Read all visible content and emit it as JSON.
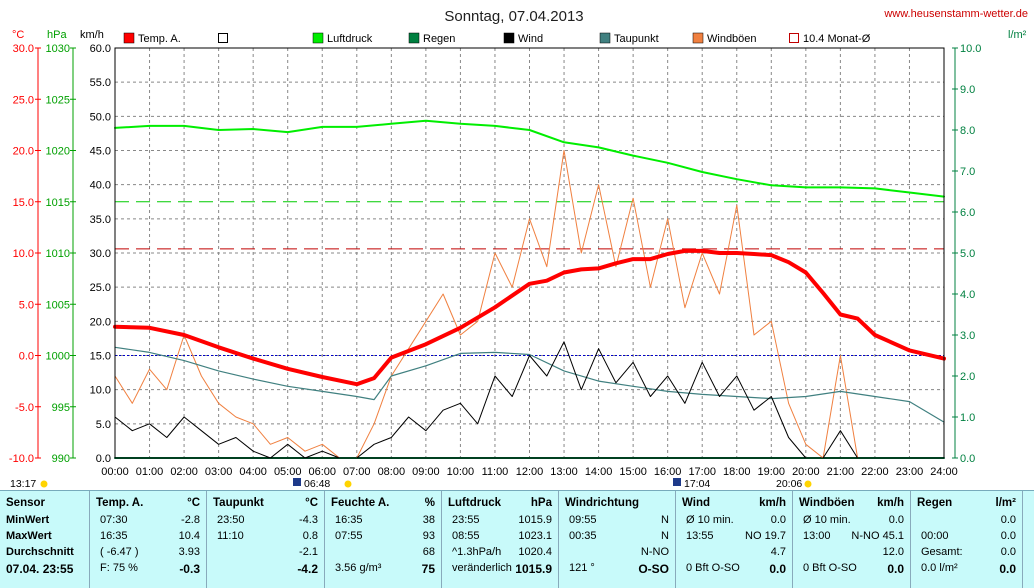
{
  "header": {
    "title": "Sonntag, 07.04.2013",
    "site": "www.heusenstamm-wetter.de",
    "units": {
      "temp": "°C",
      "press": "hPa",
      "wind": "km/h",
      "rain": "l/m²"
    }
  },
  "legend": [
    {
      "label": "Temp. A.",
      "color": "#ff0000",
      "style": "box-filled"
    },
    {
      "label": "",
      "color": "#000000",
      "style": "box-empty"
    },
    {
      "label": "Luftdruck",
      "color": "#00ee00",
      "style": "box-filled"
    },
    {
      "label": "Regen",
      "color": "#008040",
      "style": "box-filled"
    },
    {
      "label": "Wind",
      "color": "#000000",
      "style": "box-filled"
    },
    {
      "label": "Taupunkt",
      "color": "#408080",
      "style": "box-filled"
    },
    {
      "label": "Windböen",
      "color": "#f08040",
      "style": "box-filled"
    },
    {
      "label": "10.4 Monat-Ø",
      "color": "#c00000",
      "style": "box-empty"
    }
  ],
  "chart_data": {
    "type": "line",
    "x_ticks": [
      "00:00",
      "01:00",
      "02:00",
      "03:00",
      "04:00",
      "05:00",
      "06:00",
      "07:00",
      "08:00",
      "09:00",
      "10:00",
      "11:00",
      "12:00",
      "13:00",
      "14:00",
      "15:00",
      "16:00",
      "17:00",
      "18:00",
      "19:00",
      "20:00",
      "21:00",
      "22:00",
      "23:00",
      "24:00"
    ],
    "axes": {
      "temp_c": {
        "ticks": [
          "30.0",
          "25.0",
          "20.0",
          "15.0",
          "10.0",
          "5.0",
          "0.0",
          "-5.0",
          "-10.0"
        ],
        "range": [
          -10,
          30
        ]
      },
      "pressure_hpa": {
        "ticks": [
          "1030",
          "1025",
          "1020",
          "1015",
          "1010",
          "1005",
          "1000",
          "995",
          "990"
        ],
        "range": [
          990,
          1030
        ]
      },
      "wind_kmh": {
        "ticks": [
          "60.0",
          "55.0",
          "50.0",
          "45.0",
          "40.0",
          "35.0",
          "30.0",
          "25.0",
          "20.0",
          "15.0",
          "10.0",
          "5.0",
          "0.0"
        ],
        "range": [
          0,
          60
        ]
      },
      "rain_lm2": {
        "ticks": [
          "10.0",
          "9.0",
          "8.0",
          "7.0",
          "6.0",
          "5.0",
          "4.0",
          "3.0",
          "2.0",
          "1.0",
          "0.0"
        ],
        "range": [
          0,
          10
        ]
      }
    },
    "reference_lines": {
      "month_avg_temp": 10.4,
      "pressure_ref": 1015,
      "zero_temp": 0
    },
    "series": [
      {
        "name": "Temp. A.",
        "axis": "temp_c",
        "color": "#ff0000",
        "x": [
          0,
          1,
          2,
          3,
          4,
          5,
          6,
          7,
          7.5,
          8,
          9,
          10,
          11,
          12,
          12.5,
          13,
          13.5,
          14,
          14.5,
          15,
          15.5,
          16,
          16.5,
          17,
          17.5,
          18,
          18.5,
          19,
          19.5,
          20,
          20.5,
          21,
          21.5,
          22,
          23,
          24
        ],
        "y": [
          2.8,
          2.7,
          2.0,
          0.8,
          -0.3,
          -1.3,
          -2.1,
          -2.8,
          -2.2,
          -0.2,
          1.1,
          2.7,
          4.7,
          7.0,
          7.3,
          8.1,
          8.4,
          8.5,
          9.0,
          9.4,
          9.4,
          9.9,
          10.2,
          10.2,
          10.0,
          10.0,
          9.9,
          9.8,
          9.1,
          8.1,
          6.1,
          4.0,
          3.6,
          2.0,
          0.5,
          -0.3
        ]
      },
      {
        "name": "Taupunkt",
        "axis": "temp_c",
        "color": "#408080",
        "x": [
          0,
          1,
          2,
          3,
          4,
          5,
          6,
          7,
          7.5,
          8,
          9,
          10,
          11,
          12,
          13,
          14,
          15,
          16,
          17,
          18,
          19,
          20,
          21,
          22,
          23,
          24
        ],
        "y": [
          0.8,
          0.3,
          -0.5,
          -1.5,
          -2.3,
          -3.0,
          -3.5,
          -4.0,
          -4.3,
          -2.0,
          -1.0,
          0.2,
          0.3,
          0.1,
          -1.5,
          -2.5,
          -3.0,
          -3.5,
          -3.8,
          -4.0,
          -4.2,
          -4.0,
          -3.5,
          -4.0,
          -4.5,
          -6.5
        ]
      },
      {
        "name": "Luftdruck",
        "axis": "pressure_hpa",
        "color": "#00ee00",
        "x": [
          0,
          1,
          2,
          3,
          4,
          5,
          6,
          7,
          8,
          9,
          10,
          11,
          12,
          13,
          14,
          15,
          16,
          17,
          18,
          19,
          20,
          21,
          22,
          23,
          24
        ],
        "y": [
          1022.2,
          1022.4,
          1022.4,
          1022.0,
          1022.1,
          1021.8,
          1022.3,
          1022.3,
          1022.6,
          1022.9,
          1022.6,
          1022.4,
          1022.0,
          1020.8,
          1020.3,
          1019.5,
          1018.8,
          1017.9,
          1017.2,
          1016.6,
          1016.4,
          1016.4,
          1016.3,
          1015.9,
          1015.5
        ]
      },
      {
        "name": "Wind",
        "axis": "wind_kmh",
        "color": "#000000",
        "x": [
          0,
          0.5,
          1,
          1.5,
          2,
          2.5,
          3,
          3.5,
          4,
          4.5,
          5,
          5.5,
          6,
          6.5,
          7,
          7.5,
          8,
          8.5,
          9,
          9.5,
          10,
          10.5,
          11,
          11.5,
          12,
          12.5,
          13,
          13.5,
          14,
          14.5,
          15,
          15.5,
          16,
          16.5,
          17,
          17.5,
          18,
          18.5,
          19,
          19.5,
          20,
          20.5,
          21,
          21.5,
          22
        ],
        "y": [
          6,
          4,
          5,
          3,
          6,
          4,
          2,
          3,
          1,
          0,
          2,
          0,
          1,
          0,
          0,
          2,
          3,
          6,
          4,
          7,
          8,
          5,
          12,
          9,
          15,
          12,
          17,
          10,
          16,
          11,
          14,
          9,
          12,
          8,
          14,
          9,
          12,
          7,
          9,
          3,
          0,
          0,
          4,
          0,
          0
        ]
      },
      {
        "name": "Windböen",
        "axis": "wind_kmh",
        "color": "#f08040",
        "x": [
          0,
          0.5,
          1,
          1.5,
          2,
          2.5,
          3,
          3.5,
          4,
          4.5,
          5,
          5.5,
          6,
          6.5,
          7,
          7.5,
          8,
          8.5,
          9,
          9.5,
          10,
          10.5,
          11,
          11.5,
          12,
          12.5,
          13,
          13.5,
          14,
          14.5,
          15,
          15.5,
          16,
          16.5,
          17,
          17.5,
          18,
          18.5,
          19,
          19.5,
          20,
          20.5,
          21,
          21.5,
          22
        ],
        "y": [
          12,
          8,
          13,
          10,
          18,
          12,
          8,
          6,
          5,
          2,
          3,
          1,
          2,
          0,
          0,
          5,
          12,
          16,
          20,
          24,
          18,
          20,
          30,
          25,
          35,
          28,
          45,
          30,
          40,
          28,
          38,
          25,
          35,
          22,
          30,
          24,
          37,
          18,
          20,
          8,
          2,
          0,
          15,
          0,
          0
        ]
      },
      {
        "name": "Regen",
        "axis": "rain_lm2",
        "color": "#008040",
        "x": [
          0,
          24
        ],
        "y": [
          0,
          0
        ]
      }
    ],
    "time_marks": {
      "sunrise_left": "13:17",
      "dawn": "06:48",
      "sun_top": "17:04",
      "sunset": "20:06"
    }
  },
  "stats": {
    "sensor": {
      "header": "Sensor",
      "rows": [
        "MinWert",
        "MaxWert",
        "Durchschnitt",
        "07.04. 23:55"
      ]
    },
    "temp": {
      "header": "Temp. A.",
      "unit": "°C",
      "rows": [
        [
          "07:30",
          "-2.8"
        ],
        [
          "16:35",
          "10.4"
        ],
        [
          "( -6.47 )",
          "3.93"
        ],
        [
          "F: 75 %",
          "-0.3"
        ]
      ]
    },
    "dew": {
      "header": "Taupunkt",
      "unit": "°C",
      "rows": [
        [
          "23:50",
          "-4.3"
        ],
        [
          "11:10",
          "0.8"
        ],
        [
          "",
          "-2.1"
        ],
        [
          "",
          "-4.2"
        ]
      ]
    },
    "humidity": {
      "header": "Feuchte A.",
      "unit": "%",
      "rows": [
        [
          "16:35",
          "38"
        ],
        [
          "07:55",
          "93"
        ],
        [
          "",
          "68"
        ],
        [
          "3.56 g/m³",
          "75"
        ]
      ]
    },
    "pressure": {
      "header": "Luftdruck",
      "unit": "hPa",
      "rows": [
        [
          "23:55",
          "1015.9"
        ],
        [
          "08:55",
          "1023.1"
        ],
        [
          "^1.3hPa/h",
          "1020.4"
        ],
        [
          "veränderlich",
          "1015.9"
        ]
      ]
    },
    "winddir": {
      "header": "Windrichtung",
      "unit": "",
      "rows": [
        [
          "09:55",
          "N"
        ],
        [
          "00:35",
          "N"
        ],
        [
          "",
          "N-NO"
        ],
        [
          "121 °",
          "O-SO"
        ]
      ]
    },
    "wind": {
      "header": "Wind",
      "unit": "km/h",
      "rows": [
        [
          "Ø 10 min.",
          "0.0"
        ],
        [
          "13:55",
          "NO 19.7"
        ],
        [
          "",
          "4.7"
        ],
        [
          "0 Bft O-SO",
          "0.0"
        ]
      ]
    },
    "gusts": {
      "header": "Windböen",
      "unit": "km/h",
      "rows": [
        [
          "Ø 10 min.",
          "0.0"
        ],
        [
          "13:00",
          "N-NO 45.1"
        ],
        [
          "",
          "12.0"
        ],
        [
          "0 Bft O-SO",
          "0.0"
        ]
      ]
    },
    "rain": {
      "header": "Regen",
      "unit": "l/m²",
      "rows": [
        [
          "",
          "0.0"
        ],
        [
          "00:00",
          "0.0"
        ],
        [
          "Gesamt:",
          "0.0"
        ],
        [
          "0.0 l/m²",
          "0.0"
        ]
      ]
    }
  }
}
